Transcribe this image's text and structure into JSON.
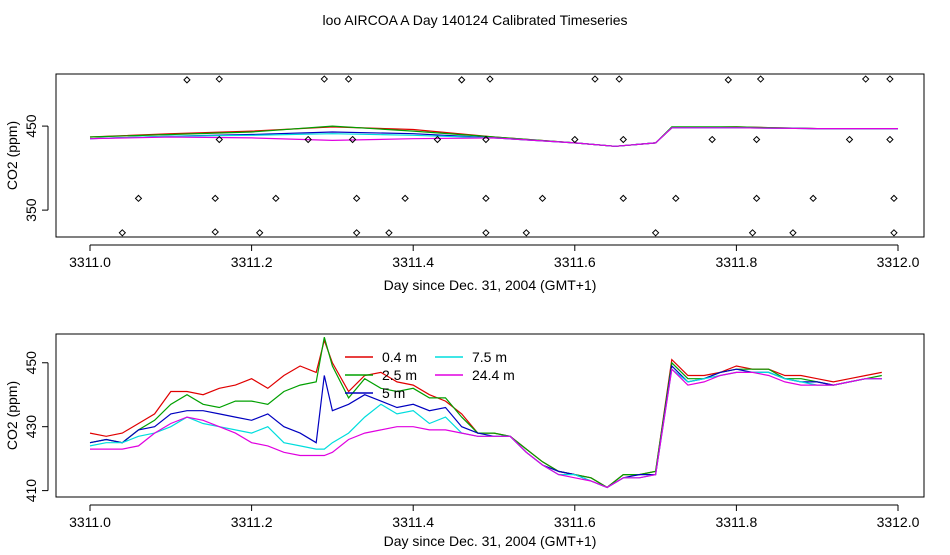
{
  "title": "loo AIRCOA A  Day 140124  Calibrated Timeseries",
  "chart_data": [
    {
      "type": "line",
      "xlabel": "Day since Dec. 31, 2004 (GMT+1)",
      "ylabel": "CO2 (ppm)",
      "xlim": [
        3311.0,
        3312.0
      ],
      "xticks": [
        3311.0,
        3311.2,
        3311.4,
        3311.6,
        3311.8,
        3312.0
      ],
      "xtick_labels": [
        "3311.0",
        "3311.2",
        "3311.4",
        "3311.6",
        "3311.8",
        "3312.0"
      ],
      "ylim": [
        318,
        512
      ],
      "yticks": [
        350,
        450
      ],
      "ytick_labels": [
        "350",
        "450"
      ],
      "x": [
        3311.0,
        3311.1,
        3311.2,
        3311.3,
        3311.4,
        3311.5,
        3311.6,
        3311.65,
        3311.7,
        3311.72,
        3311.8,
        3311.9,
        3312.0
      ],
      "series": [
        {
          "color": "#e00000",
          "values": [
            437,
            441,
            444,
            449,
            446,
            437,
            430,
            426,
            430,
            448,
            449,
            447,
            447
          ]
        },
        {
          "color": "#00a000",
          "values": [
            437,
            440,
            443,
            450,
            444,
            437,
            430,
            426,
            430,
            449,
            449,
            447,
            447
          ]
        },
        {
          "color": "#0000c0",
          "values": [
            435,
            438,
            440,
            443,
            441,
            436,
            430,
            426,
            430,
            448,
            448,
            447,
            447
          ]
        },
        {
          "color": "#00dddd",
          "values": [
            435,
            438,
            439,
            441,
            439,
            436,
            430,
            426,
            430,
            448,
            448,
            447,
            447
          ]
        },
        {
          "color": "#e000e0",
          "values": [
            435,
            437,
            436,
            433,
            435,
            436,
            430,
            426,
            430,
            448,
            448,
            447,
            447
          ]
        }
      ],
      "markers": {
        "x": [
          3311.04,
          3311.06,
          3311.12,
          3311.155,
          3311.155,
          3311.16,
          3311.16,
          3311.21,
          3311.23,
          3311.27,
          3311.29,
          3311.32,
          3311.325,
          3311.33,
          3311.33,
          3311.37,
          3311.39,
          3311.43,
          3311.46,
          3311.49,
          3311.49,
          3311.49,
          3311.495,
          3311.54,
          3311.56,
          3311.6,
          3311.625,
          3311.655,
          3311.66,
          3311.66,
          3311.7,
          3311.725,
          3311.77,
          3311.79,
          3311.82,
          3311.825,
          3311.825,
          3311.83,
          3311.87,
          3311.895,
          3311.94,
          3311.96,
          3311.99,
          3311.99,
          3311.995,
          3311.995
        ],
        "y": [
          323,
          364,
          505,
          364,
          324,
          434,
          506,
          323,
          364,
          434,
          506,
          506,
          434,
          364,
          323,
          323,
          364,
          434,
          505,
          364,
          323,
          434,
          506,
          323,
          364,
          434,
          506,
          506,
          434,
          364,
          323,
          364,
          434,
          505,
          323,
          364,
          434,
          506,
          323,
          364,
          434,
          506,
          506,
          434,
          364,
          323
        ]
      }
    },
    {
      "type": "line",
      "xlabel": "Day since Dec. 31, 2004 (GMT+1)",
      "ylabel": "CO2 (ppm)",
      "xlim": [
        3311.0,
        3312.0
      ],
      "xticks": [
        3311.0,
        3311.2,
        3311.4,
        3311.6,
        3311.8,
        3312.0
      ],
      "xtick_labels": [
        "3311.0",
        "3311.2",
        "3311.4",
        "3311.6",
        "3311.8",
        "3312.0"
      ],
      "ylim": [
        408,
        459
      ],
      "yticks": [
        410,
        430,
        450
      ],
      "ytick_labels": [
        "410",
        "430",
        "450"
      ],
      "x": [
        3311.0,
        3311.02,
        3311.04,
        3311.06,
        3311.08,
        3311.1,
        3311.12,
        3311.14,
        3311.16,
        3311.18,
        3311.2,
        3311.22,
        3311.24,
        3311.26,
        3311.28,
        3311.29,
        3311.3,
        3311.32,
        3311.34,
        3311.36,
        3311.38,
        3311.4,
        3311.42,
        3311.44,
        3311.46,
        3311.48,
        3311.5,
        3311.52,
        3311.54,
        3311.56,
        3311.58,
        3311.6,
        3311.62,
        3311.64,
        3311.66,
        3311.68,
        3311.7,
        3311.72,
        3311.74,
        3311.76,
        3311.78,
        3311.8,
        3311.82,
        3311.84,
        3311.86,
        3311.88,
        3311.9,
        3311.92,
        3311.94,
        3311.96,
        3311.98
      ],
      "series": [
        {
          "name": "0.4 m",
          "color": "#e00000",
          "values": [
            428,
            427,
            428,
            431,
            434,
            441,
            441,
            440,
            442,
            443,
            445,
            442,
            446,
            449,
            447,
            457,
            450,
            441,
            446,
            447,
            444,
            443,
            440,
            438,
            434,
            428,
            428,
            427,
            423,
            419,
            416,
            415,
            414,
            411,
            415,
            415,
            416,
            451,
            446,
            446,
            447,
            449,
            448,
            448,
            446,
            446,
            445,
            444,
            445,
            446,
            447
          ]
        },
        {
          "name": "2.5 m",
          "color": "#00a000",
          "values": [
            425,
            426,
            425,
            429,
            432,
            437,
            440,
            437,
            436,
            438,
            438,
            437,
            441,
            443,
            444,
            458,
            449,
            439,
            445,
            442,
            441,
            442,
            439,
            439,
            433,
            428,
            428,
            427,
            423,
            419,
            416,
            415,
            414,
            411,
            415,
            415,
            416,
            450,
            445,
            445,
            447,
            448,
            448,
            448,
            445,
            445,
            444,
            443,
            444,
            445,
            446
          ]
        },
        {
          "name": "5 m",
          "color": "#0000c0",
          "values": [
            425,
            426,
            425,
            429,
            430,
            434,
            435,
            435,
            434,
            433,
            432,
            434,
            430,
            428,
            425,
            446,
            435,
            437,
            440,
            438,
            436,
            437,
            435,
            436,
            430,
            428,
            427,
            427,
            422,
            418,
            416,
            415,
            413,
            411,
            414,
            415,
            415,
            449,
            444,
            445,
            447,
            448,
            447,
            447,
            445,
            444,
            444,
            443,
            444,
            445,
            445
          ]
        },
        {
          "name": "7.5 m",
          "color": "#00dddd",
          "values": [
            424,
            425,
            425,
            427,
            428,
            430,
            433,
            431,
            430,
            429,
            428,
            430,
            425,
            424,
            423,
            423,
            425,
            428,
            433,
            437,
            434,
            435,
            431,
            433,
            428,
            427,
            427,
            427,
            422,
            418,
            415,
            415,
            413,
            411,
            414,
            414,
            415,
            448,
            444,
            445,
            446,
            447,
            447,
            447,
            445,
            444,
            443,
            443,
            444,
            445,
            445
          ]
        },
        {
          "name": "24.4 m",
          "color": "#e000e0",
          "values": [
            423,
            423,
            423,
            424,
            428,
            431,
            433,
            432,
            430,
            428,
            425,
            424,
            422,
            421,
            421,
            421,
            422,
            426,
            428,
            429,
            430,
            430,
            429,
            429,
            428,
            427,
            427,
            427,
            422,
            418,
            415,
            414,
            413,
            411,
            414,
            414,
            415,
            448,
            443,
            444,
            446,
            447,
            447,
            446,
            444,
            443,
            443,
            443,
            444,
            445,
            445
          ]
        }
      ],
      "legend": "inside top-center"
    }
  ]
}
